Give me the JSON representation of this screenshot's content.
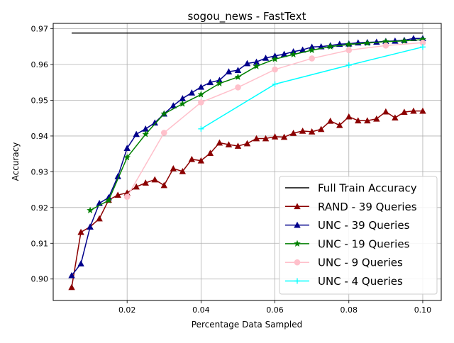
{
  "chart_data": {
    "type": "line",
    "title": "sogou_news - FastText",
    "xlabel": "Percentage Data Sampled",
    "ylabel": "Accuracy",
    "xlim": [
      0.0,
      0.105
    ],
    "ylim": [
      0.894,
      0.9715
    ],
    "xticks": [
      0.02,
      0.04,
      0.06,
      0.08,
      0.1
    ],
    "xtick_labels": [
      "0.02",
      "0.04",
      "0.06",
      "0.08",
      "0.10"
    ],
    "yticks": [
      0.9,
      0.91,
      0.92,
      0.93,
      0.94,
      0.95,
      0.96,
      0.97
    ],
    "ytick_labels": [
      "0.90",
      "0.91",
      "0.92",
      "0.93",
      "0.94",
      "0.95",
      "0.96",
      "0.97"
    ],
    "grid": true,
    "legend_position": "lower-right",
    "series": [
      {
        "name": "Full Train Accuracy",
        "color": "#000000",
        "marker": "none",
        "x": [
          0.005,
          0.1
        ],
        "y": [
          0.9688,
          0.9688
        ]
      },
      {
        "name": "RAND - 39 Queries",
        "color": "#8b0000",
        "marker": "triangle",
        "x": [
          0.005,
          0.0075,
          0.01,
          0.0125,
          0.015,
          0.0175,
          0.02,
          0.0225,
          0.025,
          0.0275,
          0.03,
          0.0325,
          0.035,
          0.0375,
          0.04,
          0.0425,
          0.045,
          0.0475,
          0.05,
          0.0525,
          0.055,
          0.0575,
          0.06,
          0.0625,
          0.065,
          0.0675,
          0.07,
          0.0725,
          0.075,
          0.0775,
          0.08,
          0.0825,
          0.085,
          0.0875,
          0.09,
          0.0925,
          0.095,
          0.0975,
          0.1
        ],
        "y": [
          0.8977,
          0.9131,
          0.9146,
          0.9169,
          0.9221,
          0.9235,
          0.9241,
          0.9258,
          0.9269,
          0.9278,
          0.9262,
          0.9309,
          0.9301,
          0.9335,
          0.9331,
          0.9352,
          0.9381,
          0.9376,
          0.9372,
          0.9379,
          0.9393,
          0.9393,
          0.9398,
          0.9397,
          0.9408,
          0.9414,
          0.9412,
          0.9419,
          0.9442,
          0.943,
          0.9454,
          0.9443,
          0.9443,
          0.9448,
          0.9468,
          0.9451,
          0.9467,
          0.947,
          0.947
        ]
      },
      {
        "name": "UNC - 39 Queries",
        "color": "#00008b",
        "marker": "triangle",
        "x": [
          0.005,
          0.0075,
          0.01,
          0.0125,
          0.015,
          0.0175,
          0.02,
          0.0225,
          0.025,
          0.0275,
          0.03,
          0.0325,
          0.035,
          0.0375,
          0.04,
          0.0425,
          0.045,
          0.0475,
          0.05,
          0.0525,
          0.055,
          0.0575,
          0.06,
          0.0625,
          0.065,
          0.0675,
          0.07,
          0.0725,
          0.075,
          0.0775,
          0.08,
          0.0825,
          0.085,
          0.0875,
          0.09,
          0.0925,
          0.095,
          0.0975,
          0.1
        ],
        "y": [
          0.901,
          0.9043,
          0.9146,
          0.9212,
          0.9228,
          0.9287,
          0.9366,
          0.9405,
          0.942,
          0.9437,
          0.9462,
          0.9485,
          0.9505,
          0.9521,
          0.9537,
          0.955,
          0.9556,
          0.958,
          0.9584,
          0.9603,
          0.9607,
          0.9618,
          0.9624,
          0.9629,
          0.9636,
          0.9641,
          0.9649,
          0.965,
          0.9653,
          0.9657,
          0.9658,
          0.9661,
          0.9662,
          0.9663,
          0.9665,
          0.9666,
          0.9668,
          0.9673,
          0.9673
        ]
      },
      {
        "name": "UNC - 19 Queries",
        "color": "#008000",
        "marker": "star",
        "x": [
          0.01,
          0.015,
          0.02,
          0.025,
          0.03,
          0.035,
          0.04,
          0.045,
          0.05,
          0.055,
          0.06,
          0.065,
          0.07,
          0.075,
          0.08,
          0.085,
          0.09,
          0.095,
          0.1
        ],
        "y": [
          0.9192,
          0.922,
          0.934,
          0.9405,
          0.9462,
          0.949,
          0.9516,
          0.9547,
          0.9565,
          0.9595,
          0.9615,
          0.9628,
          0.964,
          0.965,
          0.9656,
          0.966,
          0.9664,
          0.9666,
          0.967
        ]
      },
      {
        "name": "UNC - 9 Queries",
        "color": "#ffc0cb",
        "marker": "circle",
        "x": [
          0.02,
          0.03,
          0.04,
          0.05,
          0.06,
          0.07,
          0.08,
          0.09,
          0.1
        ],
        "y": [
          0.923,
          0.9409,
          0.9494,
          0.9536,
          0.9586,
          0.9617,
          0.964,
          0.9653,
          0.9661
        ]
      },
      {
        "name": "UNC - 4 Queries",
        "color": "#00ffff",
        "marker": "plus",
        "x": [
          0.04,
          0.06,
          0.08,
          0.1
        ],
        "y": [
          0.942,
          0.9545,
          0.9598,
          0.9649
        ]
      }
    ]
  }
}
